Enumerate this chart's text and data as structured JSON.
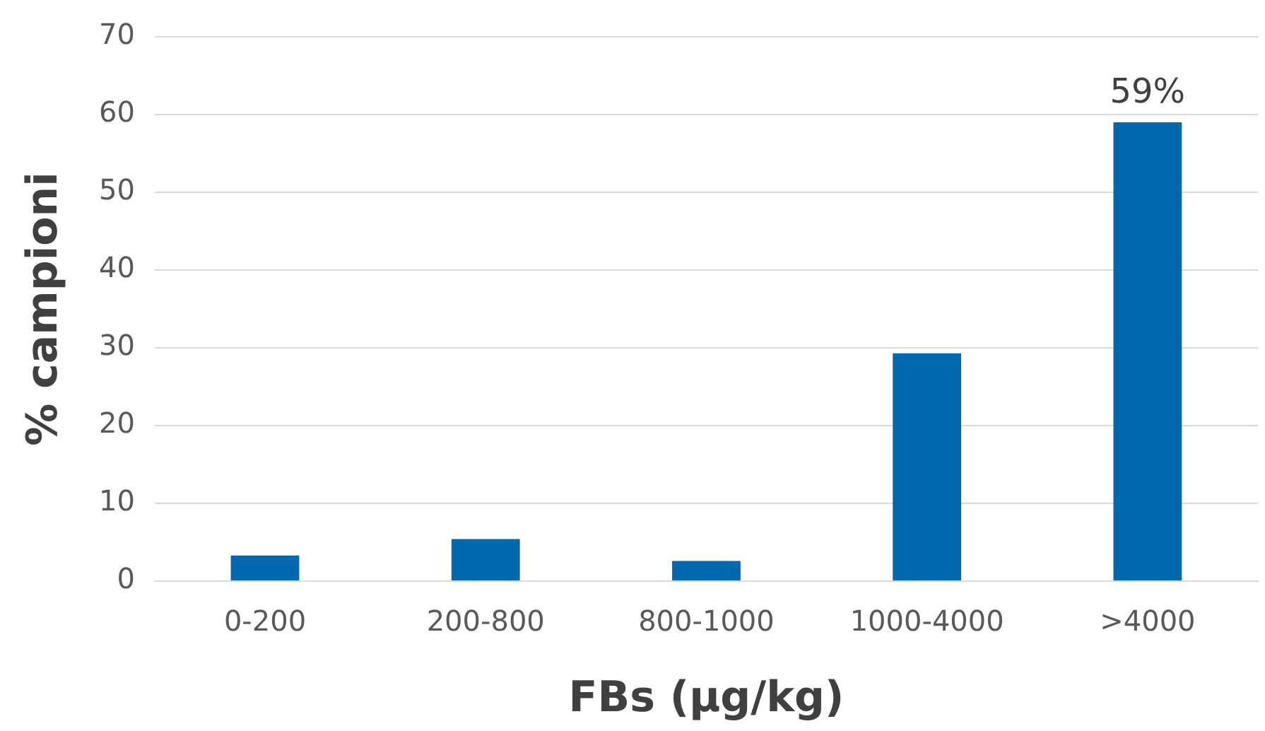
{
  "chart_data": {
    "type": "bar",
    "xlabel": "FBs (µg/kg)",
    "ylabel": "% campioni",
    "categories": [
      "0-200",
      "200-800",
      "800-1000",
      "1000-4000",
      ">4000"
    ],
    "values": [
      3.3,
      5.4,
      2.6,
      29.3,
      59
    ],
    "color": "#0068ad",
    "value_labels": [
      null,
      null,
      null,
      null,
      "59%"
    ],
    "ylim": [
      0,
      70
    ],
    "yticks": [
      0,
      10,
      20,
      30,
      40,
      50,
      60,
      70
    ],
    "grid": "y",
    "legend": false
  }
}
